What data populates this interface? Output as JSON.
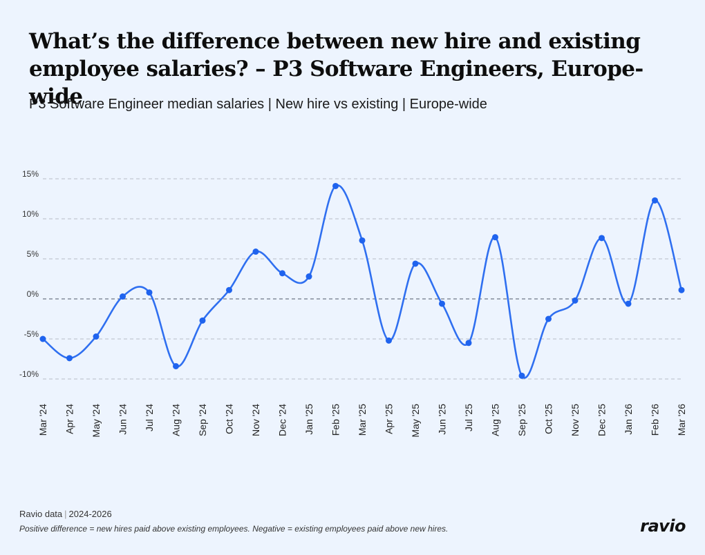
{
  "header": {
    "title": "What’s the difference between new hire and existing employee salaries? – P3 Software Engineers, Europe-wide",
    "subtitle": "P3 Software Engineer median salaries | New hire vs existing | Europe-wide"
  },
  "footer": {
    "source_label": "Ravio data",
    "source_sep": "|",
    "source_years": "2024-2026",
    "note": "Positive difference = new hires paid above existing employees. Negative = existing employees paid above new hires.",
    "logo": "ravio"
  },
  "colors": {
    "background": "#edf4fe",
    "line": "#2f6ff0",
    "marker": "#1f63ee",
    "grid": "#b7bdc7",
    "zero_line": "#6e7686",
    "text": "#111111"
  },
  "chart_data": {
    "type": "line",
    "title": "",
    "xlabel": "",
    "ylabel": "",
    "ylim": [
      -10,
      15
    ],
    "yticks": [
      15,
      10,
      5,
      0,
      -5,
      -10
    ],
    "ytick_labels": [
      "15%",
      "10%",
      "5%",
      "0%",
      "-5%",
      "-10%"
    ],
    "grid": true,
    "legend": "none",
    "categories": [
      "Mar '24",
      "Apr '24",
      "May '24",
      "Jun '24",
      "Jul '24",
      "Aug '24",
      "Sep '24",
      "Oct '24",
      "Nov '24",
      "Dec '24",
      "Jan '25",
      "Feb '25",
      "Mar '25",
      "Apr '25",
      "May '25",
      "Jun '25",
      "Jul '25",
      "Aug '25",
      "Sep '25",
      "Oct '25",
      "Nov '25",
      "Dec '25",
      "Jan '26",
      "Feb '26",
      "Mar '26"
    ],
    "series": [
      {
        "values": [
          -5.0,
          -7.4,
          -4.7,
          0.3,
          0.8,
          -8.4,
          -2.7,
          1.1,
          5.9,
          3.2,
          2.8,
          14.1,
          7.3,
          -5.2,
          4.4,
          -0.6,
          -5.5,
          7.7,
          -9.6,
          -2.5,
          -0.2,
          7.6,
          -0.6,
          12.3,
          1.1
        ]
      }
    ]
  }
}
